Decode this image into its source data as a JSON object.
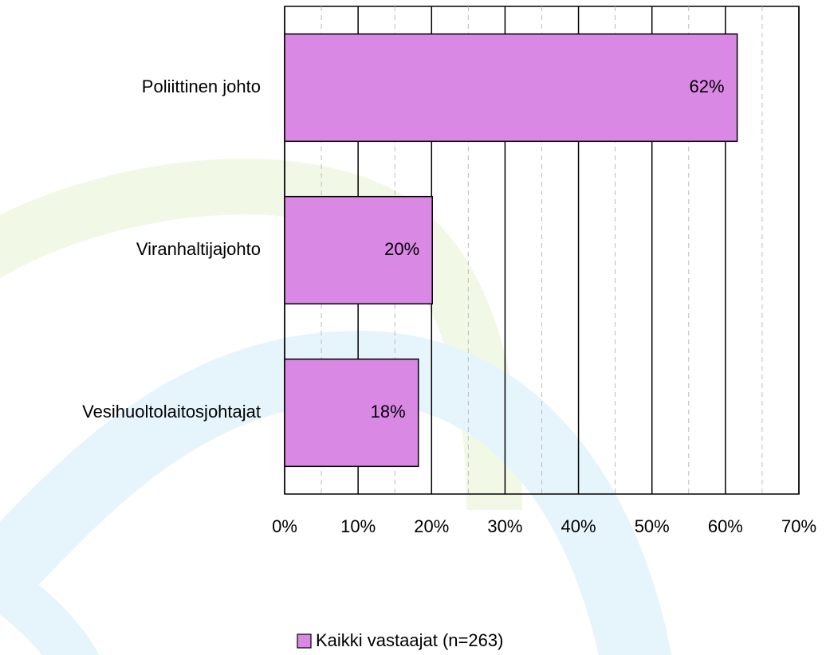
{
  "chart_data": {
    "type": "hbar",
    "categories": [
      "Poliittinen johto",
      "Viranhaltijajohto",
      "Vesihuoltolaitosjohtajat"
    ],
    "series": [
      {
        "name": "Kaikki vastaajat (n=263)",
        "color": "#d988e4",
        "values": [
          61.6,
          20.1,
          18.2
        ],
        "value_labels": [
          "62%",
          "20%",
          "18%"
        ]
      }
    ],
    "xlim": [
      0,
      70
    ],
    "xticks": [
      {
        "value": 0,
        "label": "0%"
      },
      {
        "value": 10,
        "label": "10%"
      },
      {
        "value": 20,
        "label": "20%"
      },
      {
        "value": 30,
        "label": "30%"
      },
      {
        "value": 40,
        "label": "40%"
      },
      {
        "value": 50,
        "label": "50%"
      },
      {
        "value": 60,
        "label": "60%"
      },
      {
        "value": 70,
        "label": "70%"
      }
    ],
    "minor_xticks": [
      5,
      15,
      25,
      35,
      45,
      55,
      65
    ],
    "grid": true,
    "legend": "bottom"
  }
}
